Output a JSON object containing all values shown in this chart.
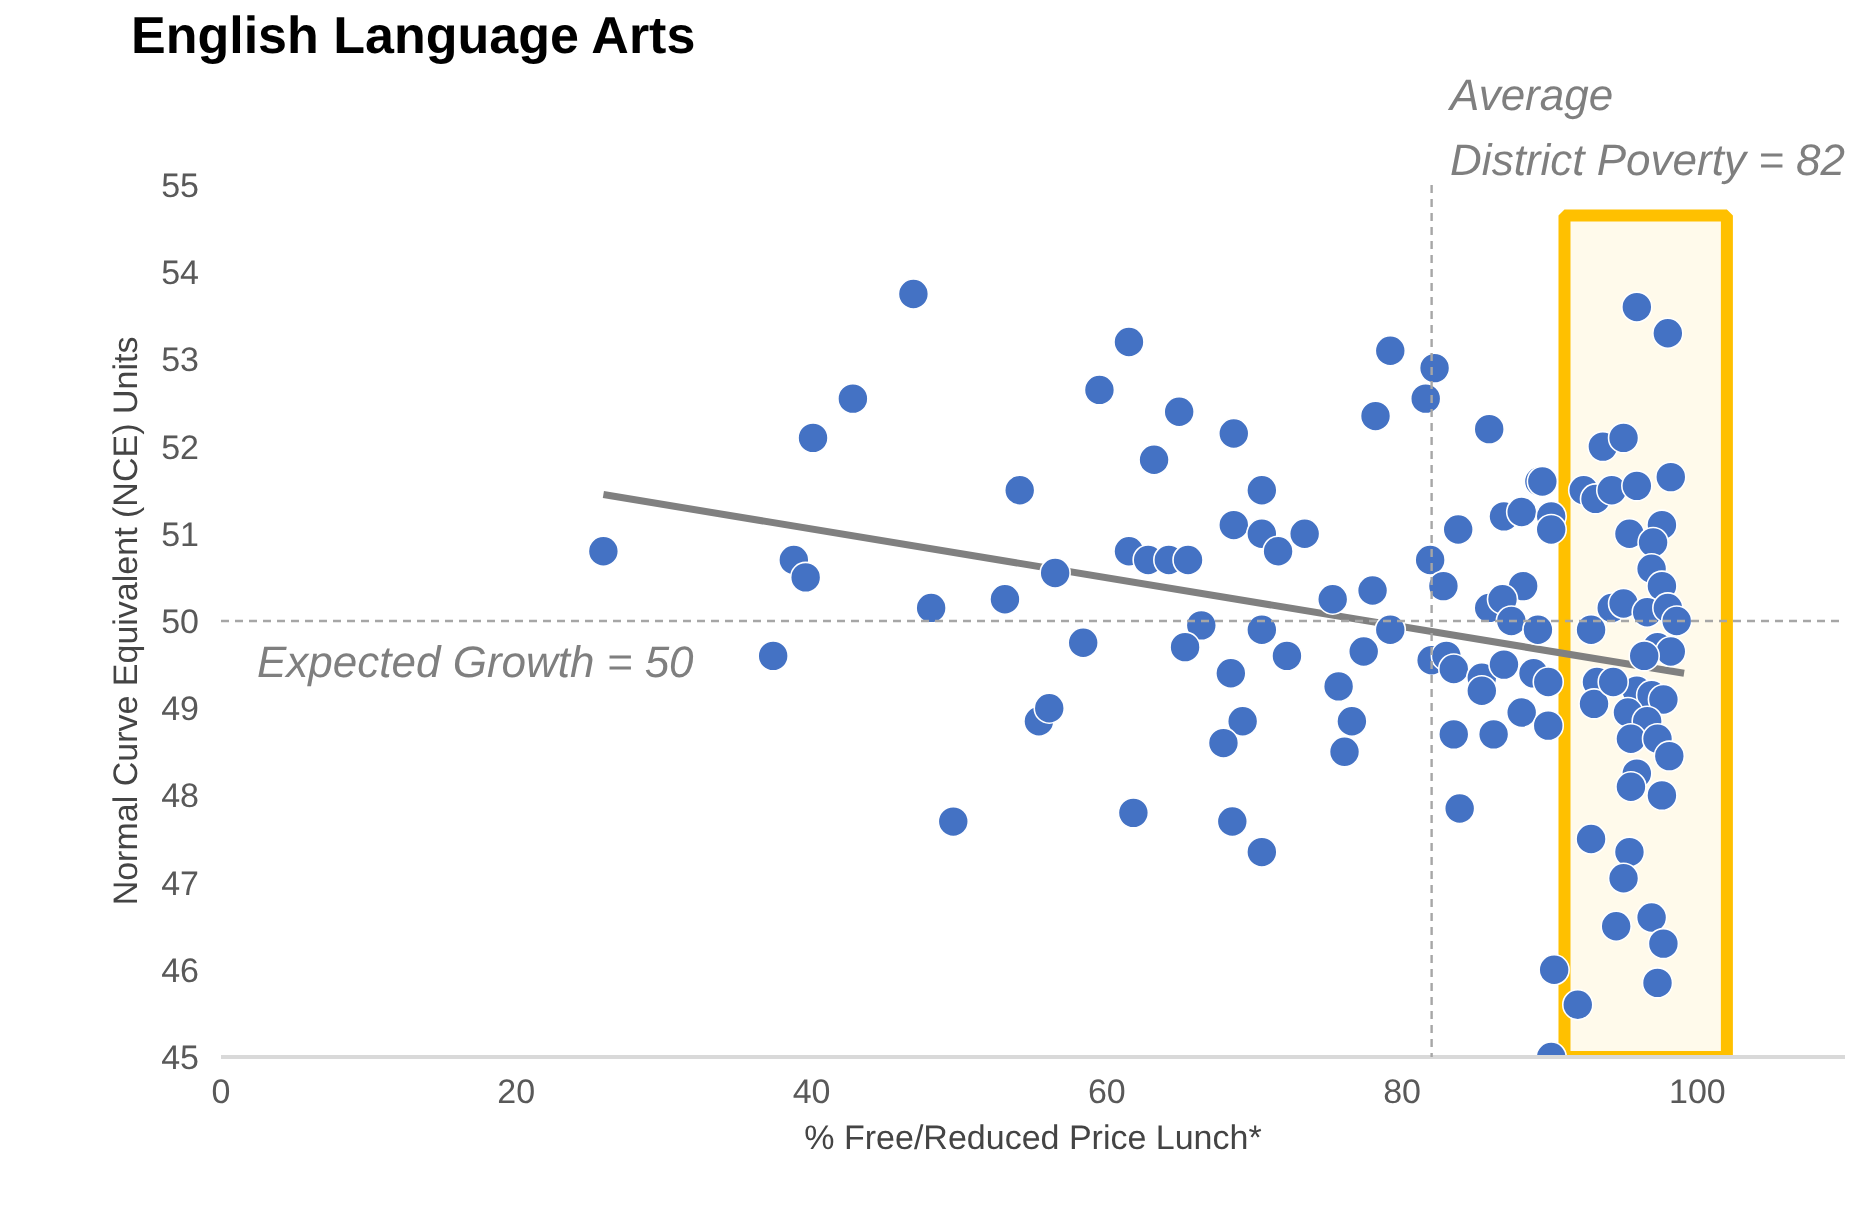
{
  "chart_data": {
    "type": "scatter",
    "title": "English Language Arts",
    "xlabel": "% Free/Reduced Price Lunch*",
    "ylabel": "Normal Curve Equivalent (NCE) Units",
    "xlim": [
      0,
      110
    ],
    "xticks": [
      0,
      20,
      40,
      60,
      80,
      100
    ],
    "ylim": [
      45,
      55
    ],
    "yticks": [
      45,
      46,
      47,
      48,
      49,
      50,
      51,
      52,
      53,
      54,
      55
    ],
    "grid": false,
    "series": [
      {
        "color": "#4472c4",
        "marker": "circle",
        "x": [
          25.9,
          37.4,
          38.8,
          39.6,
          40.1,
          42.8,
          46.9,
          48.1,
          49.6,
          53.1,
          54.1,
          55.4,
          56.1,
          56.5,
          58.4,
          59.5,
          61.5,
          61.5,
          61.8,
          62.8,
          64.2,
          65.5,
          63.2,
          64.9,
          68.6,
          70.5,
          68.6,
          70.5,
          71.6,
          73.4,
          66.4,
          65.3,
          70.5,
          72.2,
          68.4,
          69.2,
          67.9,
          68.5,
          70.5,
          75.3,
          78.0,
          79.2,
          77.4,
          75.7,
          76.6,
          76.1,
          79.2,
          78.2,
          82.2,
          81.6,
          85.9,
          83.8,
          81.9,
          82.8,
          89.3,
          86.9,
          88.1,
          90.1,
          90.1,
          88.2,
          85.9,
          86.8,
          87.4,
          89.2,
          82.0,
          83.0,
          83.5,
          85.4,
          85.4,
          86.9,
          88.9,
          89.9,
          88.1,
          89.9,
          83.5,
          86.2,
          83.9,
          90.3,
          90.1,
          91.9,
          95.9,
          98.0,
          93.6,
          95.0,
          89.5,
          92.3,
          93.1,
          94.2,
          95.9,
          98.2,
          95.4,
          97.6,
          97.0,
          96.9,
          97.6,
          94.2,
          95.0,
          96.6,
          98.0,
          98.6,
          92.8,
          97.3,
          98.2,
          96.4,
          93.2,
          93.0,
          95.9,
          96.9,
          97.7,
          95.3,
          96.6,
          95.5,
          97.3,
          98.1,
          95.9,
          95.5,
          97.6,
          92.8,
          95.4,
          95.0,
          96.9,
          94.5,
          97.7,
          97.3,
          94.3
        ],
        "values": [
          50.8,
          49.6,
          50.7,
          50.5,
          52.1,
          52.55,
          53.75,
          50.15,
          47.7,
          50.25,
          51.5,
          48.85,
          49.0,
          50.55,
          49.75,
          52.65,
          53.2,
          50.8,
          47.8,
          50.7,
          50.7,
          50.7,
          51.85,
          52.4,
          52.15,
          51.5,
          51.1,
          51.0,
          50.8,
          51.0,
          49.95,
          49.7,
          49.9,
          49.6,
          49.4,
          48.85,
          48.6,
          47.7,
          47.35,
          50.25,
          50.35,
          49.9,
          49.65,
          49.25,
          48.85,
          48.5,
          53.1,
          52.35,
          52.9,
          52.55,
          52.2,
          51.05,
          50.7,
          50.4,
          51.6,
          51.2,
          51.25,
          51.2,
          51.05,
          50.4,
          50.15,
          50.25,
          50.0,
          49.9,
          49.55,
          49.6,
          49.45,
          49.35,
          49.2,
          49.5,
          49.4,
          49.3,
          48.95,
          48.8,
          48.7,
          48.7,
          47.85,
          46.0,
          45.0,
          45.6,
          53.6,
          53.3,
          52.0,
          52.1,
          51.6,
          51.5,
          51.4,
          51.5,
          51.55,
          51.65,
          51.0,
          51.1,
          50.9,
          50.6,
          50.4,
          50.15,
          50.2,
          50.1,
          50.15,
          50.0,
          49.9,
          49.7,
          49.65,
          49.6,
          49.3,
          49.05,
          49.2,
          49.15,
          49.1,
          48.95,
          48.85,
          48.65,
          48.65,
          48.45,
          48.25,
          48.1,
          48.0,
          47.5,
          47.35,
          47.05,
          46.6,
          46.5,
          46.3,
          45.85,
          49.3
        ]
      },
      {
        "type": "line",
        "color": "#808080",
        "line_style": "solid",
        "x": [
          25.9,
          99.1
        ],
        "values": [
          51.45,
          49.4
        ]
      }
    ],
    "ref_lines": [
      {
        "axis": "y",
        "value": 50,
        "label": "Expected Growth = 50",
        "color": "#a6a6a6",
        "line_style": "dashed"
      },
      {
        "axis": "x",
        "value": 82,
        "label": "Average\nDistrict Poverty = 82",
        "color": "#a6a6a6",
        "line_style": "dashed"
      }
    ],
    "bands": [
      {
        "axis": "x",
        "from": 91,
        "to": 102,
        "color": "#ffc000"
      }
    ]
  }
}
